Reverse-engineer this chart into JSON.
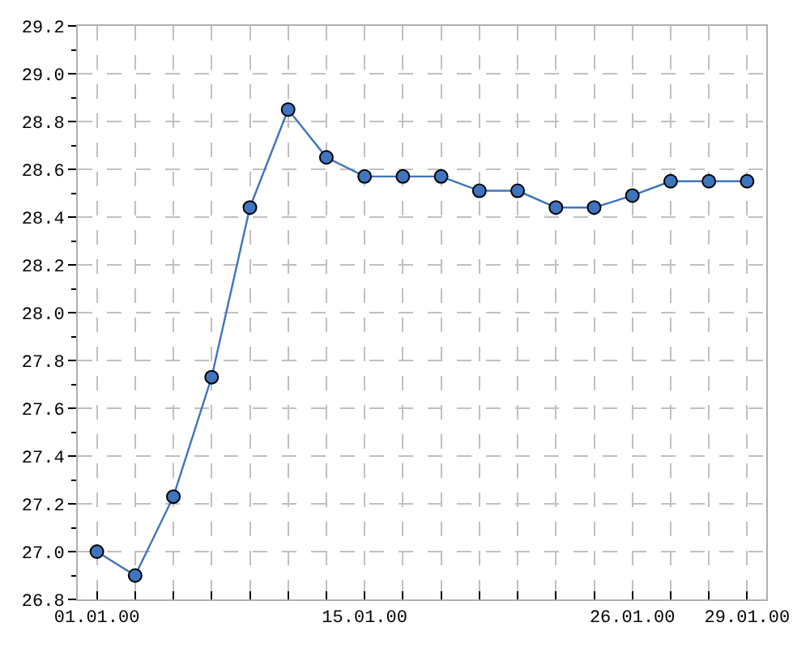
{
  "chart_data": {
    "type": "line",
    "categories": [
      "01.01.00",
      null,
      null,
      null,
      null,
      null,
      null,
      "15.01.00",
      null,
      null,
      null,
      null,
      null,
      null,
      "26.01.00",
      null,
      null,
      "29.01.00"
    ],
    "series": [
      {
        "color": "#3f74bf",
        "values": [
          27.0,
          26.9,
          27.23,
          27.73,
          28.44,
          28.85,
          28.65,
          28.57,
          28.57,
          28.57,
          28.51,
          28.51,
          28.44,
          28.44,
          28.49,
          28.55,
          28.55,
          28.55
        ]
      }
    ],
    "ylim": [
      26.8,
      29.2
    ],
    "yticks": [
      {
        "value": 26.8,
        "label": "26.8"
      },
      {
        "value": 26.9,
        "label": null
      },
      {
        "value": 27.0,
        "label": "27.0"
      },
      {
        "value": 27.1,
        "label": null
      },
      {
        "value": 27.2,
        "label": "27.2"
      },
      {
        "value": 27.3,
        "label": null
      },
      {
        "value": 27.4,
        "label": "27.4"
      },
      {
        "value": 27.5,
        "label": null
      },
      {
        "value": 27.6,
        "label": "27.6"
      },
      {
        "value": 27.7,
        "label": null
      },
      {
        "value": 27.8,
        "label": "27.8"
      },
      {
        "value": 27.9,
        "label": null
      },
      {
        "value": 28.0,
        "label": "28.0"
      },
      {
        "value": 28.1,
        "label": null
      },
      {
        "value": 28.2,
        "label": "28.2"
      },
      {
        "value": 28.3,
        "label": null
      },
      {
        "value": 28.4,
        "label": "28.4"
      },
      {
        "value": 28.5,
        "label": null
      },
      {
        "value": 28.6,
        "label": "28.6"
      },
      {
        "value": 28.7,
        "label": null
      },
      {
        "value": 28.8,
        "label": "28.8"
      },
      {
        "value": 28.9,
        "label": null
      },
      {
        "value": 29.0,
        "label": "29.0"
      },
      {
        "value": 29.1,
        "label": null
      },
      {
        "value": 29.2,
        "label": "29.2"
      }
    ],
    "grid": true,
    "marker": "circle",
    "line_style": "solid"
  }
}
